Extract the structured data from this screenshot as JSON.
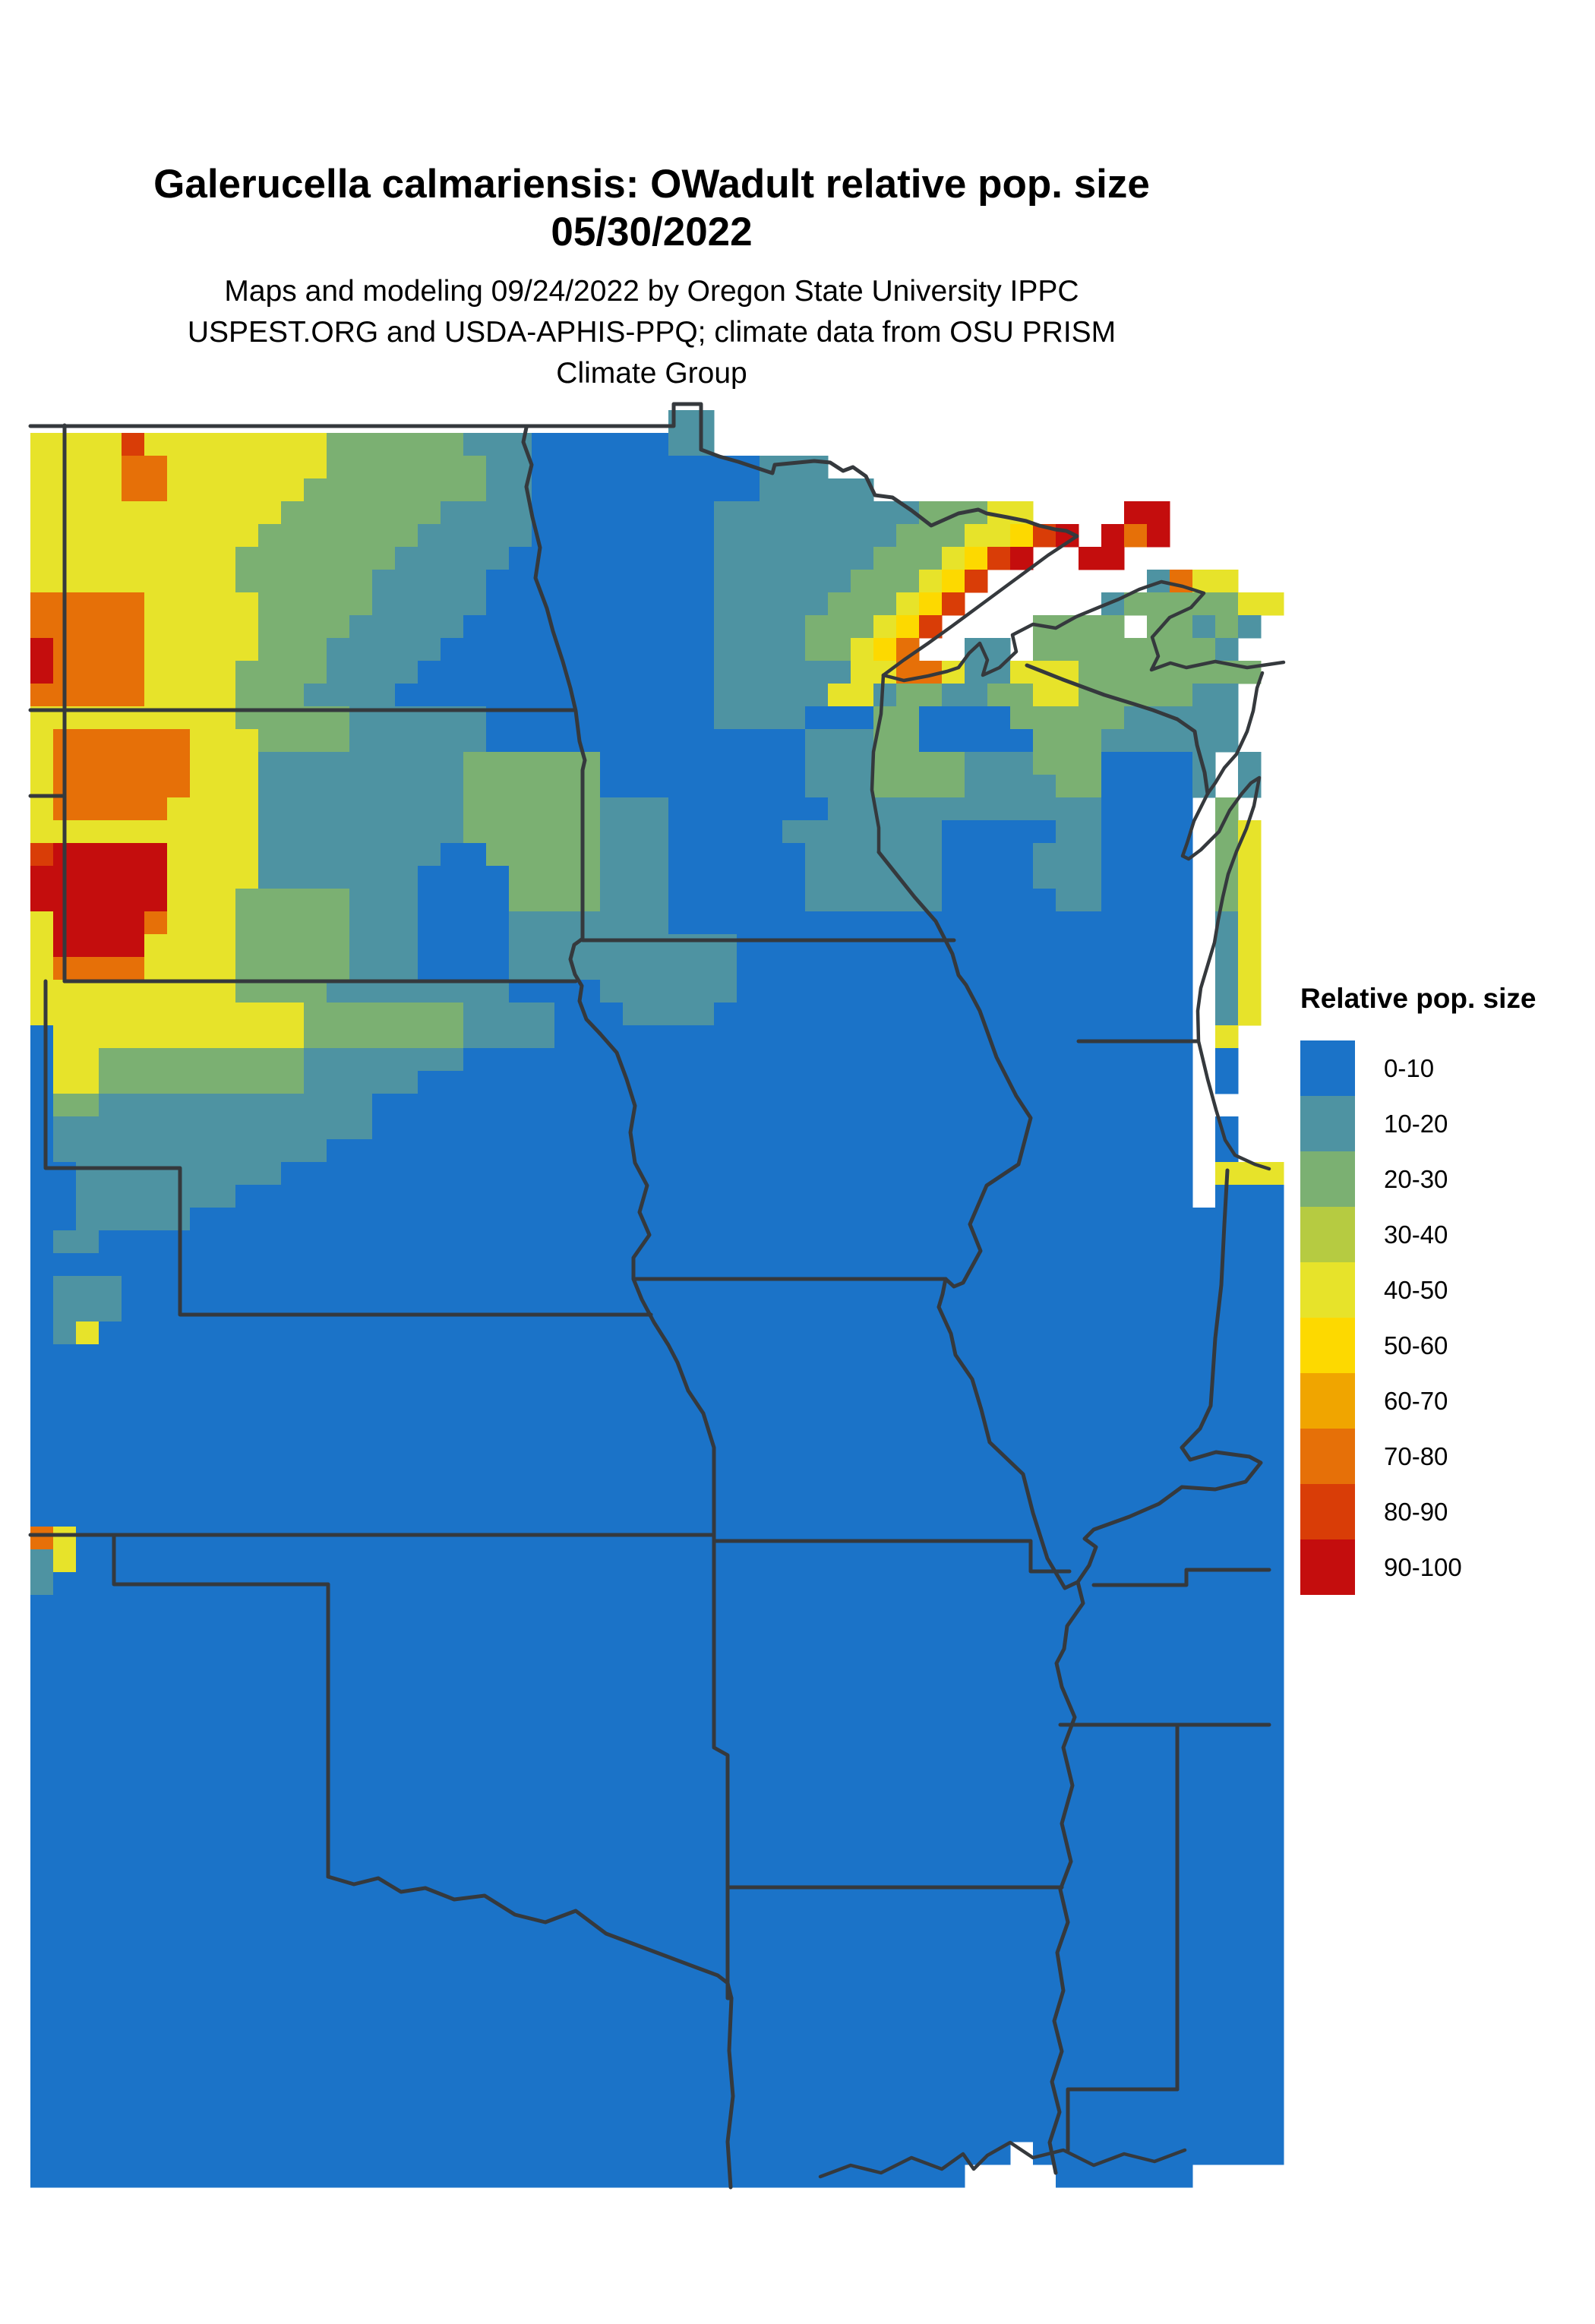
{
  "header": {
    "title_line1": "Galerucella calmariensis: OWadult relative pop. size",
    "title_line2": "05/30/2022",
    "subtitle_line1": "Maps and modeling 09/24/2022 by Oregon State University IPPC",
    "subtitle_line2": "USPEST.ORG and USDA-APHIS-PPQ; climate data from OSU PRISM",
    "subtitle_line3": "Climate Group"
  },
  "legend": {
    "title": "Relative pop. size",
    "items": [
      {
        "label": "0-10",
        "color": "#1b73c8"
      },
      {
        "label": "10-20",
        "color": "#4e93a2"
      },
      {
        "label": "20-30",
        "color": "#7bb072"
      },
      {
        "label": "30-40",
        "color": "#b6cb41"
      },
      {
        "label": "40-50",
        "color": "#e7e32a"
      },
      {
        "label": "50-60",
        "color": "#fdd900"
      },
      {
        "label": "60-70",
        "color": "#f0a500"
      },
      {
        "label": "70-80",
        "color": "#e67008"
      },
      {
        "label": "80-90",
        "color": "#d93d07"
      },
      {
        "label": "90-100",
        "color": "#c40d0d"
      }
    ]
  },
  "map": {
    "border_color": "#35393d",
    "water_color": "#ffffff",
    "palette": {
      "0": "#1b73c8",
      "1": "#4e93a2",
      "2": "#7bb072",
      "3": "#b6cb41",
      "4": "#e7e32a",
      "5": "#fdd900",
      "6": "#f0a500",
      "7": "#e67008",
      "8": "#d93d07",
      "9": "#c40d0d"
    },
    "grid_rows": [
      "............................11.........................",
      "444484444444422222211100000011.........................",
      "44447744444442222222110000000000111....................",
      "4444774444442222222211000000000011111..................",
      "44444444444222222211110000000011111111122244....99.....",
      "4444444444222222211111000000001111111122244589.979.....",
      "44444444422222221111100000000011111112224589..99.......",
      "444444444222222111110000000000111111222458.......1744..",
      "77777444442222211111000000000011111222458......12222244",
      "7777744444222211111000000000001111222458....2222.22121.",
      "977774444422211111000000000000111122457..11.222222221..",
      "977774444222211110000000000000111111447741144422222222.",
      "77777444422211110000000000000011111441221122442222211..",
      "44444444422222111111000000000011110002200002222211111..",
      "47777774442222111111000000000000001112200000222111111..",
      "4777777444111111111222222000000000111222211122200001.1.",
      "4777777444111111111222222000000000111222211112200001.1.",
      "477777444411111111122222211100000001111111111110000 2...",
      "444444444411111111122222211100000111111100000110000 24..",
      "899999444411111111002222211100000011111100001110000 24..",
      "999999444411111110000222211100000011111100001110000 24..",
      "999999444222221110000222211100000011111100000110000 24..",
      "499997444222221110000111111100000000000000000000000 14..",
      "499994444222221110000111111111100000000000000000000 14..",
      "477774444222221110000111111111100000000000000000000 14..",
      "444444444222211111111000011111100000000000000000000 14..",
      "444444444444222222211110001111000000000000000000000 14..",
      "044444444444222222211110000000000000000000000000000 4...",
      "044222222222111111100000000000000000000000000000000 0...",
      "044222222222111110000000000000000000000000000000000 0...",
      "022111111111111000000000000000000000000000000000000 ....",
      "011111111111111000000000000000000000000000000000000 0...",
      "011111111111100000000000000000000000000000000000000 0...",
      "001111111110000000000000000000000000000000000000000 444",
      "001111111000000000000000000000000000000000000000000 000",
      "0011111000000000000000000000000000000000000000000000000",
      "0110000000000000000000000000000000000000000000000000000",
      "0000000000000000000000000000000000000000000000000000000",
      "0111000000000000000000000000000000000000000000000000000",
      "0111000000000000000000000000000000000000000000000000000",
      "0140000000000000000000000000000000000000000000000000000",
      "0000000000000000000000000000000000000000000000000000000",
      "0000000000000000000000000000000000000000000000000000000",
      "0000000000000000000000000000000000000000000000000000000",
      "0000000000000000000000000000000000000000000000000000000",
      "0000000000000000000000000000000000000000000000000000000",
      "0000000000000000000000000000000000000000000000000000000",
      "0000000000000000000000000000000000000000000000000000000",
      "0000000000000000000000000000000000000000000000000000000",
      "7400000000000000000000000000000000000000000000000000000",
      "1400000000000000000000000000000000000000000000000000000",
      "1000000000000000000000000000000000000000000000000000000",
      "0000000000000000000000000000000000000000000000000000000",
      "0000000000000000000000000000000000000000000000000000000",
      "0000000000000000000000000000000000000000000000000000000",
      "0000000000000000000000000000000000000000000000000000000",
      "0000000000000000000000000000000000000000000000000000000",
      "0000000000000000000000000000000000000000000000000000000",
      "0000000000000000000000000000000000000000000000000000000",
      "0000000000000000000000000000000000000000000000000000000",
      "0000000000000000000000000000000000000000000000000000000",
      "0000000000000000000000000000000000000000000000000000000",
      "0000000000000000000000000000000000000000000000000000000",
      "0000000000000000000000000000000000000000000000000000000",
      "0000000000000000000000000000000000000000000000000000000",
      "0000000000000000000000000000000000000000000000000000000",
      "0000000000000000000000000000000000000000000000000000000",
      "0000000000000000000000000000000000000000000000000000000",
      "0000000000000000000000000000000000000000000000000000000",
      "0000000000000000000000000000000000000000000000000000000",
      "0000000000000000000000000000000000000000000000000000000",
      "0000000000000000000000000000000000000000000000000000000",
      "0000000000000000000000000000000000000000000000000000000",
      "0000000000000000000000000000000000000000000000000000000",
      "0000000000000000000000000000000000000000000000000000000",
      "0000000000000000000000000000000000000000000000000000000",
      "0000000000000000000000000000000000000000000.00000000000",
      "00000000000000000000000000000000000000000....000000...."
    ]
  }
}
